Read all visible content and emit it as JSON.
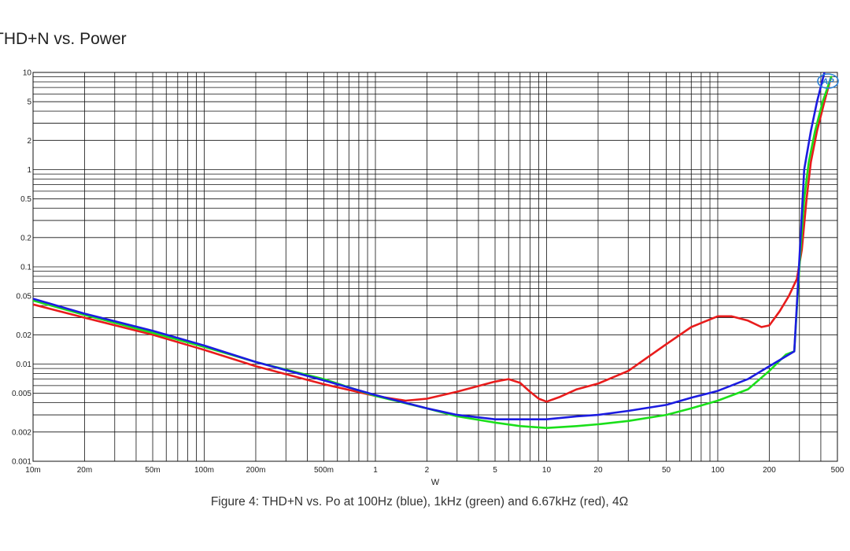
{
  "chart_data": {
    "type": "line",
    "title": "THD+N vs. Power",
    "caption": "Figure 4: THD+N vs. Po at 100Hz (blue), 1kHz (green) and 6.67kHz (red), 4Ω",
    "xlabel": "W",
    "ylabel": "",
    "xscale": "log",
    "yscale": "log",
    "xlim": [
      0.01,
      500
    ],
    "ylim": [
      0.001,
      10
    ],
    "grid": true,
    "logo": "AP",
    "x_ticks": [
      {
        "value": 0.01,
        "label": "10m"
      },
      {
        "value": 0.02,
        "label": "20m"
      },
      {
        "value": 0.05,
        "label": "50m"
      },
      {
        "value": 0.1,
        "label": "100m"
      },
      {
        "value": 0.2,
        "label": "200m"
      },
      {
        "value": 0.5,
        "label": "500m"
      },
      {
        "value": 1,
        "label": "1"
      },
      {
        "value": 2,
        "label": "2"
      },
      {
        "value": 5,
        "label": "5"
      },
      {
        "value": 10,
        "label": "10"
      },
      {
        "value": 20,
        "label": "20"
      },
      {
        "value": 50,
        "label": "50"
      },
      {
        "value": 100,
        "label": "100"
      },
      {
        "value": 200,
        "label": "200"
      },
      {
        "value": 500,
        "label": "500"
      }
    ],
    "y_ticks": [
      {
        "value": 10,
        "label": "10"
      },
      {
        "value": 5,
        "label": "5"
      },
      {
        "value": 2,
        "label": "2"
      },
      {
        "value": 1,
        "label": "1"
      },
      {
        "value": 0.5,
        "label": "0.5"
      },
      {
        "value": 0.2,
        "label": "0.2"
      },
      {
        "value": 0.1,
        "label": "0.1"
      },
      {
        "value": 0.05,
        "label": "0.05"
      },
      {
        "value": 0.02,
        "label": "0.02"
      },
      {
        "value": 0.01,
        "label": "0.01"
      },
      {
        "value": 0.005,
        "label": "0.005"
      },
      {
        "value": 0.002,
        "label": "0.002"
      },
      {
        "value": 0.001,
        "label": "0.001"
      }
    ],
    "series": [
      {
        "color": "#e81c1c",
        "points": [
          [
            0.01,
            0.041
          ],
          [
            0.02,
            0.03
          ],
          [
            0.05,
            0.02
          ],
          [
            0.1,
            0.014
          ],
          [
            0.2,
            0.0095
          ],
          [
            0.5,
            0.0062
          ],
          [
            1,
            0.0047
          ],
          [
            1.5,
            0.0042
          ],
          [
            2,
            0.0044
          ],
          [
            3,
            0.0052
          ],
          [
            5,
            0.0066
          ],
          [
            6,
            0.007
          ],
          [
            7,
            0.0064
          ],
          [
            8,
            0.0052
          ],
          [
            9,
            0.0044
          ],
          [
            10,
            0.0041
          ],
          [
            12,
            0.0046
          ],
          [
            15,
            0.0055
          ],
          [
            20,
            0.0063
          ],
          [
            30,
            0.0085
          ],
          [
            50,
            0.016
          ],
          [
            70,
            0.024
          ],
          [
            100,
            0.031
          ],
          [
            120,
            0.031
          ],
          [
            150,
            0.028
          ],
          [
            180,
            0.024
          ],
          [
            200,
            0.025
          ],
          [
            230,
            0.035
          ],
          [
            260,
            0.05
          ],
          [
            290,
            0.075
          ],
          [
            310,
            0.15
          ],
          [
            330,
            0.5
          ],
          [
            350,
            1.2
          ],
          [
            380,
            2.5
          ],
          [
            420,
            5
          ],
          [
            460,
            9
          ]
        ]
      },
      {
        "color": "#1adf1a",
        "points": [
          [
            0.01,
            0.045
          ],
          [
            0.02,
            0.032
          ],
          [
            0.05,
            0.021
          ],
          [
            0.1,
            0.015
          ],
          [
            0.2,
            0.0105
          ],
          [
            0.5,
            0.007
          ],
          [
            1,
            0.0047
          ],
          [
            2,
            0.0035
          ],
          [
            3,
            0.0029
          ],
          [
            5,
            0.0025
          ],
          [
            7,
            0.0023
          ],
          [
            10,
            0.0022
          ],
          [
            15,
            0.0023
          ],
          [
            20,
            0.0024
          ],
          [
            30,
            0.0026
          ],
          [
            50,
            0.003
          ],
          [
            70,
            0.0035
          ],
          [
            100,
            0.0042
          ],
          [
            150,
            0.0055
          ],
          [
            200,
            0.0085
          ],
          [
            250,
            0.0125
          ],
          [
            280,
            0.0135
          ],
          [
            300,
            0.1
          ],
          [
            320,
            0.5
          ],
          [
            340,
            1.2
          ],
          [
            370,
            2.5
          ],
          [
            410,
            5
          ],
          [
            460,
            9
          ]
        ]
      },
      {
        "color": "#1c1ce0",
        "points": [
          [
            0.01,
            0.047
          ],
          [
            0.02,
            0.033
          ],
          [
            0.05,
            0.022
          ],
          [
            0.1,
            0.0155
          ],
          [
            0.2,
            0.0105
          ],
          [
            0.5,
            0.0068
          ],
          [
            1,
            0.0048
          ],
          [
            2,
            0.0035
          ],
          [
            3,
            0.003
          ],
          [
            5,
            0.0027
          ],
          [
            7,
            0.0027
          ],
          [
            10,
            0.0027
          ],
          [
            15,
            0.0029
          ],
          [
            20,
            0.003
          ],
          [
            30,
            0.0033
          ],
          [
            50,
            0.0038
          ],
          [
            70,
            0.0045
          ],
          [
            100,
            0.0053
          ],
          [
            150,
            0.007
          ],
          [
            200,
            0.0095
          ],
          [
            250,
            0.012
          ],
          [
            280,
            0.0135
          ],
          [
            300,
            0.12
          ],
          [
            320,
            1
          ],
          [
            350,
            2.5
          ],
          [
            380,
            5
          ],
          [
            420,
            10
          ]
        ]
      }
    ]
  }
}
